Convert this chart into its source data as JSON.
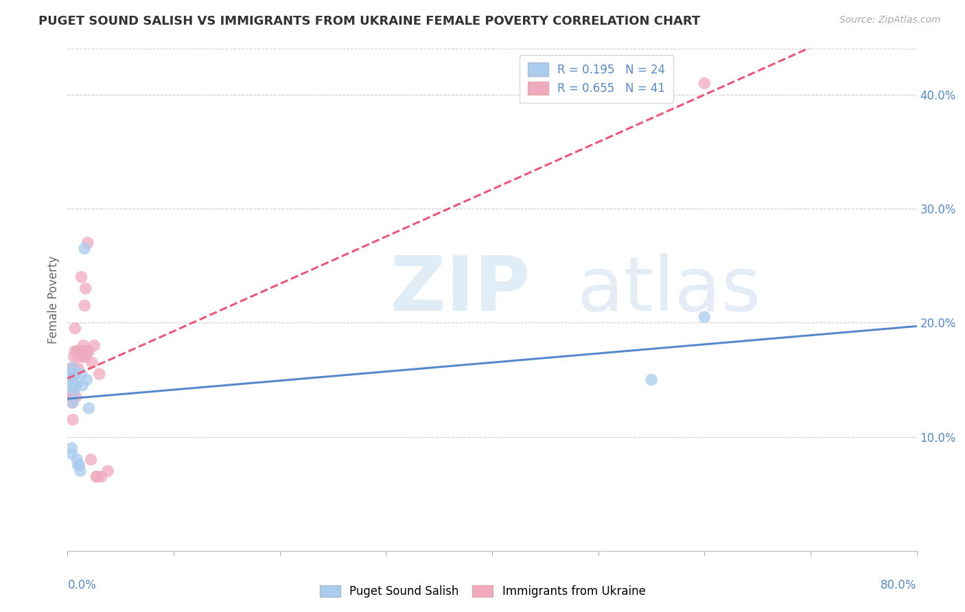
{
  "title": "PUGET SOUND SALISH VS IMMIGRANTS FROM UKRAINE FEMALE POVERTY CORRELATION CHART",
  "source": "Source: ZipAtlas.com",
  "ylabel": "Female Poverty",
  "yticks": [
    0.0,
    0.1,
    0.2,
    0.3,
    0.4
  ],
  "ytick_labels": [
    "",
    "10.0%",
    "20.0%",
    "30.0%",
    "40.0%"
  ],
  "xlim": [
    0.0,
    0.8
  ],
  "ylim": [
    0.0,
    0.44
  ],
  "color_salish": "#aaccee",
  "color_ukraine": "#f0aac0",
  "color_line_salish": "#5588cc",
  "color_line_ukraine": "#ee5577",
  "salish_x": [
    0.002,
    0.003,
    0.003,
    0.004,
    0.004,
    0.004,
    0.005,
    0.005,
    0.005,
    0.006,
    0.006,
    0.007,
    0.008,
    0.009,
    0.01,
    0.011,
    0.012,
    0.013,
    0.014,
    0.016,
    0.018,
    0.02,
    0.55,
    0.6
  ],
  "salish_y": [
    0.155,
    0.155,
    0.145,
    0.155,
    0.085,
    0.09,
    0.16,
    0.15,
    0.13,
    0.145,
    0.14,
    0.155,
    0.145,
    0.08,
    0.075,
    0.075,
    0.07,
    0.155,
    0.145,
    0.265,
    0.15,
    0.125,
    0.15,
    0.205
  ],
  "ukraine_x": [
    0.002,
    0.003,
    0.003,
    0.003,
    0.004,
    0.004,
    0.005,
    0.005,
    0.005,
    0.006,
    0.006,
    0.006,
    0.007,
    0.007,
    0.007,
    0.008,
    0.008,
    0.009,
    0.01,
    0.01,
    0.011,
    0.012,
    0.013,
    0.014,
    0.015,
    0.015,
    0.016,
    0.017,
    0.017,
    0.018,
    0.019,
    0.02,
    0.022,
    0.023,
    0.025,
    0.027,
    0.028,
    0.03,
    0.032,
    0.038,
    0.6
  ],
  "ukraine_y": [
    0.135,
    0.15,
    0.155,
    0.16,
    0.13,
    0.135,
    0.14,
    0.145,
    0.115,
    0.155,
    0.16,
    0.17,
    0.155,
    0.195,
    0.175,
    0.135,
    0.145,
    0.175,
    0.17,
    0.16,
    0.175,
    0.175,
    0.24,
    0.175,
    0.17,
    0.18,
    0.215,
    0.23,
    0.17,
    0.175,
    0.27,
    0.175,
    0.08,
    0.165,
    0.18,
    0.065,
    0.065,
    0.155,
    0.065,
    0.07,
    0.41
  ],
  "salish_R": 0.195,
  "salish_N": 24,
  "ukraine_R": 0.655,
  "ukraine_N": 41
}
